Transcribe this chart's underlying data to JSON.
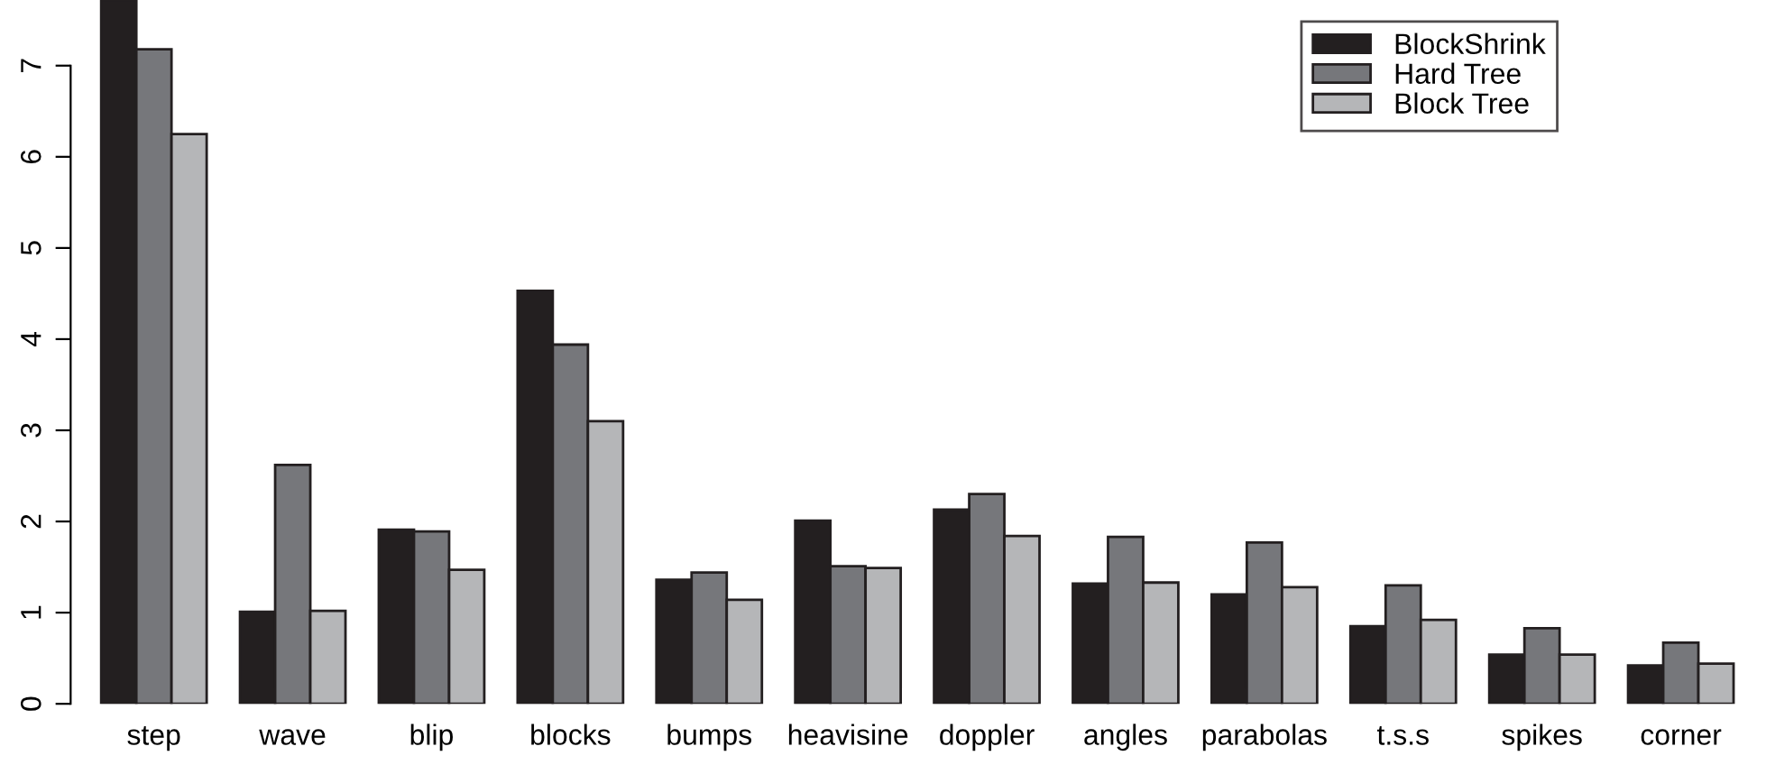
{
  "chart_data": {
    "type": "bar",
    "categories": [
      "step",
      "wave",
      "blip",
      "blocks",
      "bumps",
      "heavisine",
      "doppler",
      "angles",
      "parabolas",
      "t.s.s",
      "spikes",
      "corner"
    ],
    "series": [
      {
        "name": "BlockShrink",
        "color": "#231f20",
        "values": [
          7.72,
          1.01,
          1.91,
          4.53,
          1.36,
          2.01,
          2.13,
          1.32,
          1.2,
          0.85,
          0.54,
          0.42
        ]
      },
      {
        "name": "Hard Tree",
        "color": "#76777b",
        "values": [
          7.18,
          2.62,
          1.89,
          3.94,
          1.44,
          1.51,
          2.3,
          1.83,
          1.77,
          1.3,
          0.83,
          0.67
        ]
      },
      {
        "name": "Block Tree",
        "color": "#b5b6b8",
        "values": [
          6.25,
          1.02,
          1.47,
          3.1,
          1.14,
          1.49,
          1.84,
          1.33,
          1.28,
          0.92,
          0.54,
          0.44
        ]
      }
    ],
    "ylim": [
      0,
      7.72
    ],
    "yticks": [
      0,
      1,
      2,
      3,
      4,
      5,
      6,
      7
    ],
    "grid": false,
    "legend": "top right"
  }
}
